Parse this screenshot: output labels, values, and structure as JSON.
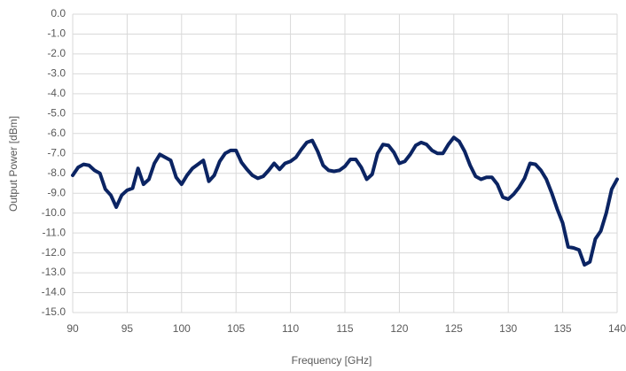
{
  "chart_data": {
    "type": "line",
    "x_label": "Frequency [GHz]",
    "y_label": "Output Power [dBm]",
    "x": [
      90,
      90.5,
      91,
      91.5,
      92,
      92.5,
      93,
      93.5,
      94,
      94.5,
      95,
      95.5,
      96,
      96.5,
      97,
      97.5,
      98,
      98.5,
      99,
      99.5,
      100,
      100.5,
      101,
      101.5,
      102,
      102.5,
      103,
      103.5,
      104,
      104.5,
      105,
      105.5,
      106,
      106.5,
      107,
      107.5,
      108,
      108.5,
      109,
      109.5,
      110,
      110.5,
      111,
      111.5,
      112,
      112.5,
      113,
      113.5,
      114,
      114.5,
      115,
      115.5,
      116,
      116.5,
      117,
      117.5,
      118,
      118.5,
      119,
      119.5,
      120,
      120.5,
      121,
      121.5,
      122,
      122.5,
      123,
      123.5,
      124,
      124.5,
      125,
      125.5,
      126,
      126.5,
      127,
      127.5,
      128,
      128.5,
      129,
      129.5,
      130,
      130.5,
      131,
      131.5,
      132,
      132.5,
      133,
      133.5,
      134,
      134.5,
      135,
      135.5,
      136,
      136.5,
      137,
      137.5,
      138,
      138.5,
      139,
      139.5,
      140
    ],
    "series": [
      {
        "color": "#0b2463",
        "values": [
          -8.1,
          -7.7,
          -7.55,
          -7.6,
          -7.85,
          -8.0,
          -8.8,
          -9.1,
          -9.7,
          -9.1,
          -8.85,
          -8.75,
          -7.75,
          -8.55,
          -8.3,
          -7.5,
          -7.05,
          -7.2,
          -7.35,
          -8.2,
          -8.55,
          -8.1,
          -7.75,
          -7.55,
          -7.35,
          -8.4,
          -8.1,
          -7.4,
          -7.0,
          -6.85,
          -6.85,
          -7.45,
          -7.8,
          -8.1,
          -8.25,
          -8.15,
          -7.85,
          -7.5,
          -7.8,
          -7.5,
          -7.4,
          -7.2,
          -6.8,
          -6.45,
          -6.35,
          -6.9,
          -7.6,
          -7.85,
          -7.9,
          -7.85,
          -7.65,
          -7.3,
          -7.3,
          -7.7,
          -8.3,
          -8.05,
          -7.0,
          -6.55,
          -6.6,
          -6.95,
          -7.5,
          -7.4,
          -7.05,
          -6.6,
          -6.45,
          -6.55,
          -6.85,
          -7.0,
          -7.0,
          -6.55,
          -6.2,
          -6.4,
          -6.9,
          -7.6,
          -8.15,
          -8.3,
          -8.2,
          -8.2,
          -8.55,
          -9.2,
          -9.3,
          -9.05,
          -8.7,
          -8.25,
          -7.5,
          -7.55,
          -7.85,
          -8.3,
          -9.0,
          -9.8,
          -10.5,
          -11.7,
          -11.75,
          -11.85,
          -12.6,
          -12.45,
          -11.3,
          -10.9,
          -10.0,
          -8.8,
          -8.3
        ]
      }
    ],
    "xlim": [
      90,
      140
    ],
    "xticks": [
      90,
      95,
      100,
      105,
      110,
      115,
      120,
      125,
      130,
      135,
      140
    ],
    "ylim": [
      -15,
      0
    ],
    "yticks": [
      {
        "value": 0,
        "label": "0.0"
      },
      {
        "value": -1,
        "label": "-1.0"
      },
      {
        "value": -2,
        "label": "-2.0"
      },
      {
        "value": -3,
        "label": "-3.0"
      },
      {
        "value": -4,
        "label": "-4.0"
      },
      {
        "value": -5,
        "label": "-5.0"
      },
      {
        "value": -6,
        "label": "-6.0"
      },
      {
        "value": -7,
        "label": "-7.0"
      },
      {
        "value": -8,
        "label": "-8.0"
      },
      {
        "value": -9,
        "label": "-9.0"
      },
      {
        "value": -10,
        "label": "-10.0"
      },
      {
        "value": -11,
        "label": "-11.0"
      },
      {
        "value": -12,
        "label": "-12.0"
      },
      {
        "value": -13,
        "label": "-13.0"
      },
      {
        "value": -14,
        "label": "-14.0"
      },
      {
        "value": -15,
        "label": "-15.0"
      }
    ],
    "grid": true
  }
}
